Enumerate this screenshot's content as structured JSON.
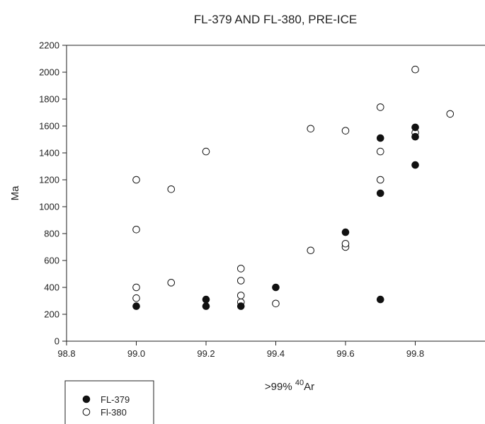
{
  "chart_data": {
    "type": "scatter",
    "title": "FL-379 AND FL-380, PRE-ICE",
    "xlabel_prefix": ">99% ",
    "xlabel_sup": "40",
    "xlabel_suffix": "Ar",
    "ylabel": "Ma",
    "xlim": [
      98.8,
      100.0
    ],
    "ylim": [
      0,
      2200
    ],
    "xticks": [
      98.8,
      99.0,
      99.2,
      99.4,
      99.6,
      99.8
    ],
    "xtick_labels": [
      "98.8",
      "99.0",
      "99.2",
      "99.4",
      "99.6",
      "99.8"
    ],
    "yticks": [
      0,
      200,
      400,
      600,
      800,
      1000,
      1200,
      1400,
      1600,
      1800,
      2000,
      2200
    ],
    "ytick_labels": [
      "0",
      "200",
      "400",
      "600",
      "800",
      "1000",
      "1200",
      "1400",
      "1600",
      "1800",
      "2000",
      "2200"
    ],
    "grid": false,
    "legend_position": "bottom-left",
    "series": [
      {
        "name": "FL-379",
        "marker": "filled-circle",
        "color": "#111111",
        "points": [
          [
            99.0,
            260
          ],
          [
            99.2,
            260
          ],
          [
            99.2,
            310
          ],
          [
            99.3,
            260
          ],
          [
            99.4,
            400
          ],
          [
            99.6,
            810
          ],
          [
            99.7,
            310
          ],
          [
            99.7,
            1100
          ],
          [
            99.7,
            1510
          ],
          [
            99.8,
            1310
          ],
          [
            99.8,
            1520
          ],
          [
            99.8,
            1590
          ]
        ]
      },
      {
        "name": "Fl-380",
        "marker": "open-circle",
        "color": "#111111",
        "points": [
          [
            99.0,
            320
          ],
          [
            99.0,
            400
          ],
          [
            99.0,
            830
          ],
          [
            99.0,
            1200
          ],
          [
            99.1,
            435
          ],
          [
            99.1,
            1130
          ],
          [
            99.2,
            1410
          ],
          [
            99.3,
            290
          ],
          [
            99.3,
            340
          ],
          [
            99.3,
            450
          ],
          [
            99.3,
            540
          ],
          [
            99.4,
            280
          ],
          [
            99.5,
            675
          ],
          [
            99.5,
            1580
          ],
          [
            99.6,
            700
          ],
          [
            99.6,
            725
          ],
          [
            99.6,
            1565
          ],
          [
            99.7,
            1200
          ],
          [
            99.7,
            1410
          ],
          [
            99.7,
            1740
          ],
          [
            99.8,
            1550
          ],
          [
            99.8,
            2020
          ],
          [
            99.9,
            1690
          ]
        ]
      }
    ]
  }
}
